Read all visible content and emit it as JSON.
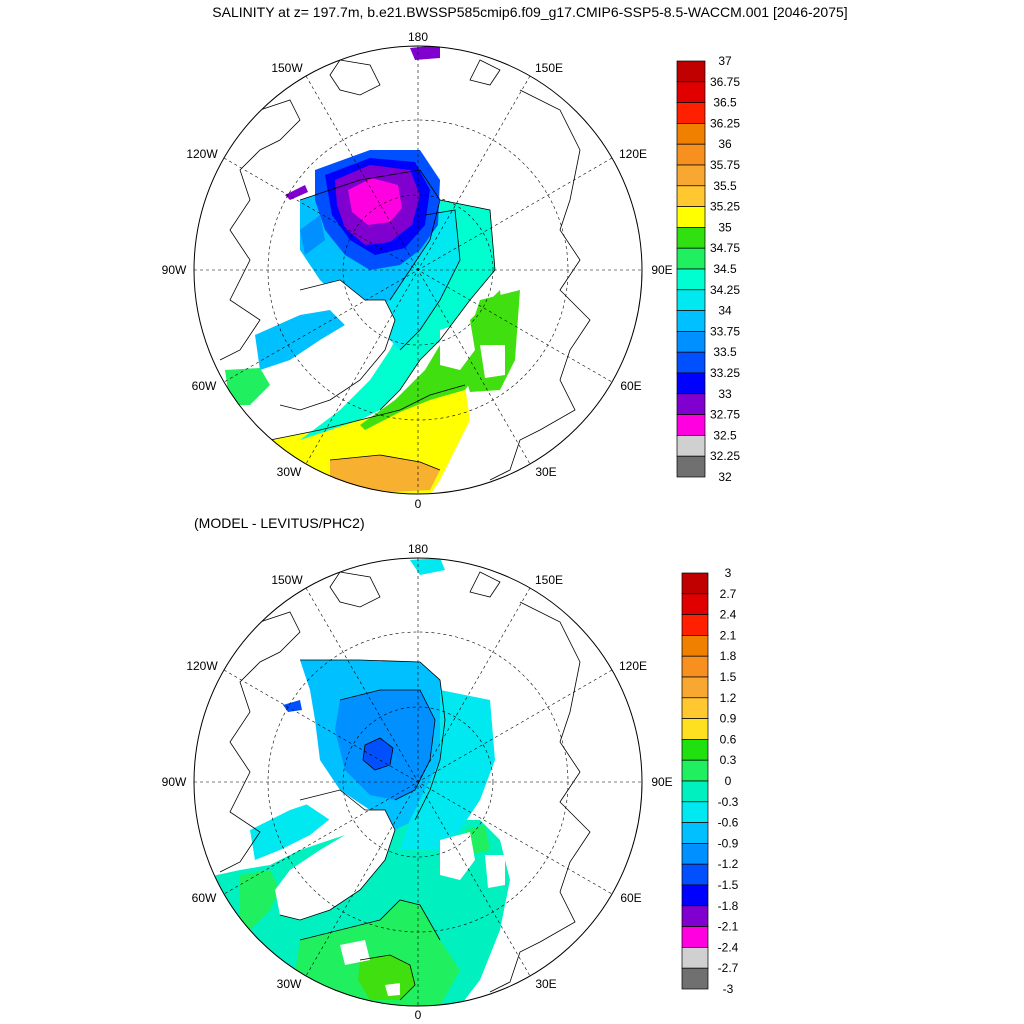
{
  "title": "SALINITY at z= 197.7m, b.e21.BWSSP585cmip6.f09_g17.CMIP6-SSP5-8.5-WACCM.001 [2046-2075]",
  "subtitle": "(MODEL - LEVITUS/PHC2)",
  "lon_labels": {
    "top": "180",
    "bottom": "0",
    "upper_left": "150W",
    "upper_right": "150E",
    "mid_upper_left": "120W",
    "mid_upper_right": "120E",
    "left": "90W",
    "right": "90E",
    "mid_lower_left": "60W",
    "mid_lower_right": "60E",
    "lower_left": "30W",
    "lower_right": "30E"
  },
  "colorbar_top": {
    "labels": [
      "37",
      "36.75",
      "36.5",
      "36.25",
      "36",
      "35.75",
      "35.5",
      "35.25",
      "35",
      "34.75",
      "34.5",
      "34.25",
      "34",
      "33.75",
      "33.5",
      "33.25",
      "33",
      "32.75",
      "32.5",
      "32.25",
      "32"
    ],
    "colors": [
      "#c00000",
      "#e00000",
      "#ff2000",
      "#f08000",
      "#f89020",
      "#f8a830",
      "#ffc830",
      "#ffff00",
      "#30e010",
      "#20f060",
      "#00ffd0",
      "#00e8f0",
      "#00c0ff",
      "#0090ff",
      "#0050ff",
      "#0000ff",
      "#8000d0",
      "#ff00e0",
      "#d0d0d0",
      "#707070"
    ]
  },
  "colorbar_bottom": {
    "labels": [
      "3",
      "2.7",
      "2.4",
      "2.1",
      "1.8",
      "1.5",
      "1.2",
      "0.9",
      "0.6",
      "0.3",
      "0",
      "-0.3",
      "-0.6",
      "-0.9",
      "-1.2",
      "-1.5",
      "-1.8",
      "-2.1",
      "-2.4",
      "-2.7",
      "-3"
    ],
    "colors": [
      "#c00000",
      "#e00000",
      "#ff2000",
      "#f08000",
      "#f89020",
      "#f8a830",
      "#ffc830",
      "#ffe020",
      "#20e010",
      "#20f060",
      "#00f0c0",
      "#00e8f0",
      "#00c0ff",
      "#0090ff",
      "#0050ff",
      "#0000ff",
      "#8000d0",
      "#ff00e0",
      "#d0d0d0",
      "#707070"
    ]
  }
}
